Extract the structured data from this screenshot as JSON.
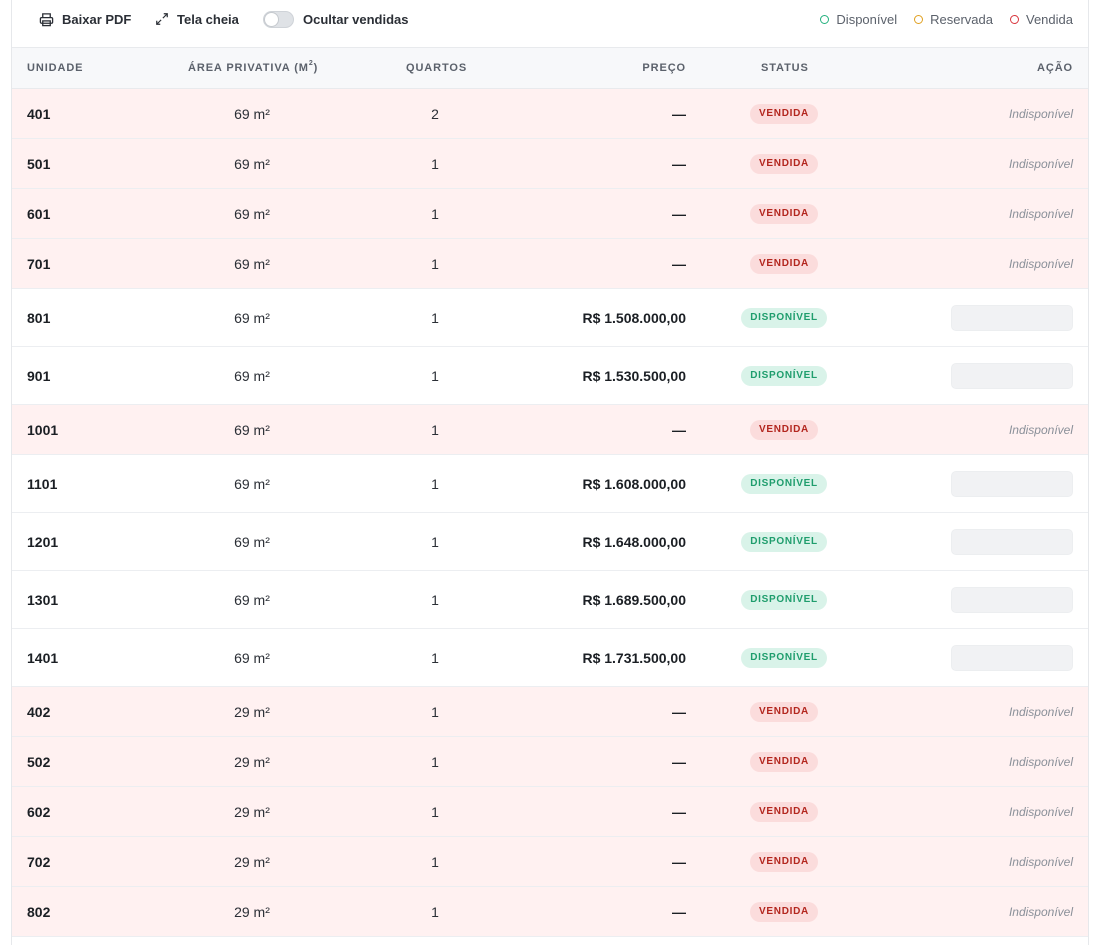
{
  "toolbar": {
    "pdf_label": "Baixar PDF",
    "fullscreen_label": "Tela cheia",
    "hide_sold_label": "Ocultar vendidas",
    "hide_sold_on": false
  },
  "legend": [
    {
      "label": "Disponível",
      "color": "#22b07d"
    },
    {
      "label": "Reservada",
      "color": "#e0a020"
    },
    {
      "label": "Vendida",
      "color": "#d9363e"
    }
  ],
  "columns": {
    "unit": "UNIDADE",
    "area": "ÁREA PRIVATIVA (M",
    "area_sup": "2",
    "area_close": ")",
    "rooms": "QUARTOS",
    "price": "PREÇO",
    "status": "STATUS",
    "action": "AÇÃO"
  },
  "status_labels": {
    "sold": "VENDIDA",
    "available": "DISPONÍVEL"
  },
  "action_unavailable": "Indisponível",
  "rows": [
    {
      "unit": "401",
      "area": "69 m²",
      "rooms": "2",
      "price": "—",
      "status": "sold"
    },
    {
      "unit": "501",
      "area": "69 m²",
      "rooms": "1",
      "price": "—",
      "status": "sold"
    },
    {
      "unit": "601",
      "area": "69 m²",
      "rooms": "1",
      "price": "—",
      "status": "sold"
    },
    {
      "unit": "701",
      "area": "69 m²",
      "rooms": "1",
      "price": "—",
      "status": "sold"
    },
    {
      "unit": "801",
      "area": "69 m²",
      "rooms": "1",
      "price": "R$ 1.508.000,00",
      "status": "available"
    },
    {
      "unit": "901",
      "area": "69 m²",
      "rooms": "1",
      "price": "R$ 1.530.500,00",
      "status": "available"
    },
    {
      "unit": "1001",
      "area": "69 m²",
      "rooms": "1",
      "price": "—",
      "status": "sold"
    },
    {
      "unit": "1101",
      "area": "69 m²",
      "rooms": "1",
      "price": "R$ 1.608.000,00",
      "status": "available"
    },
    {
      "unit": "1201",
      "area": "69 m²",
      "rooms": "1",
      "price": "R$ 1.648.000,00",
      "status": "available"
    },
    {
      "unit": "1301",
      "area": "69 m²",
      "rooms": "1",
      "price": "R$ 1.689.500,00",
      "status": "available"
    },
    {
      "unit": "1401",
      "area": "69 m²",
      "rooms": "1",
      "price": "R$ 1.731.500,00",
      "status": "available"
    },
    {
      "unit": "402",
      "area": "29 m²",
      "rooms": "1",
      "price": "—",
      "status": "sold"
    },
    {
      "unit": "502",
      "area": "29 m²",
      "rooms": "1",
      "price": "—",
      "status": "sold"
    },
    {
      "unit": "602",
      "area": "29 m²",
      "rooms": "1",
      "price": "—",
      "status": "sold"
    },
    {
      "unit": "702",
      "area": "29 m²",
      "rooms": "1",
      "price": "—",
      "status": "sold"
    },
    {
      "unit": "802",
      "area": "29 m²",
      "rooms": "1",
      "price": "—",
      "status": "sold"
    }
  ]
}
